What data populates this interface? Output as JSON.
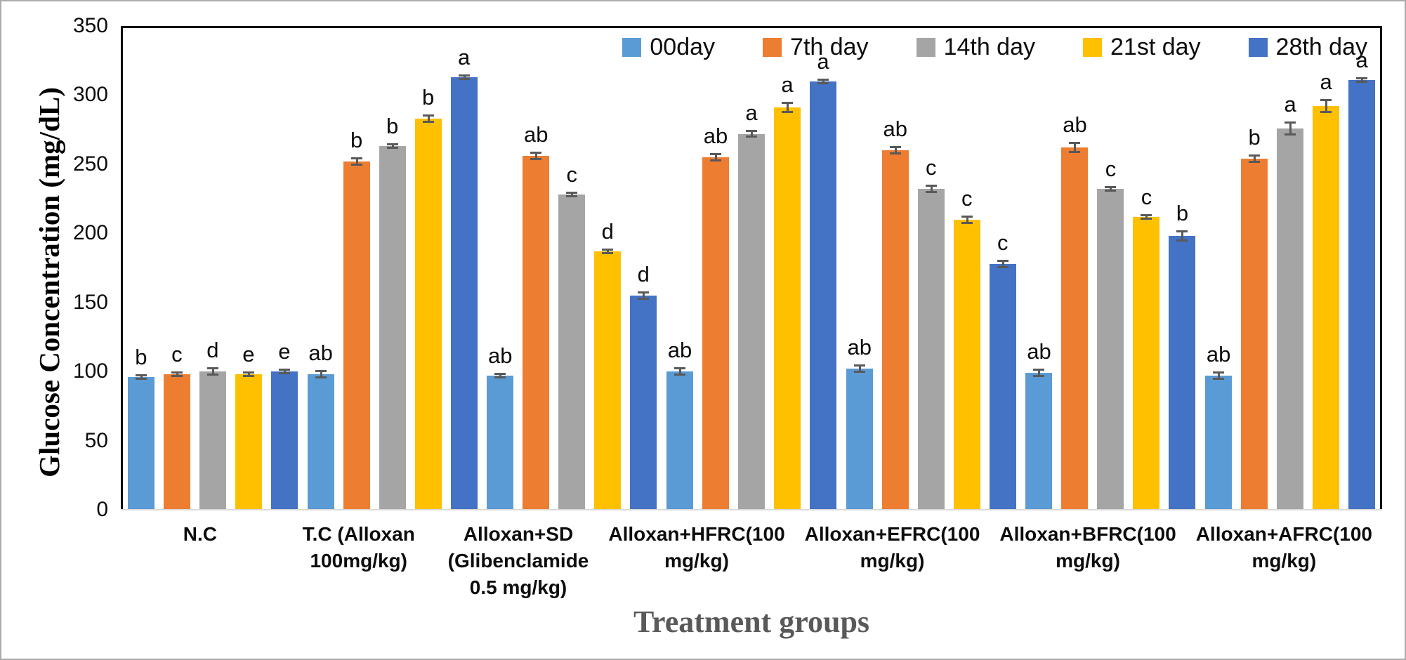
{
  "chart_data": {
    "type": "bar",
    "title": "",
    "xlabel": "Treatment groups",
    "ylabel": "Glucose Concentration (mg/dL)",
    "ylim": [
      0,
      350
    ],
    "yticks": [
      0,
      50,
      100,
      150,
      200,
      250,
      300,
      350
    ],
    "grid": false,
    "legend_position": "top-right-inside",
    "error_bar_color": "#595959",
    "categories": [
      "N.C",
      "T.C (Alloxan 100mg/kg)",
      "Alloxan+SD (Glibenclamide 0.5 mg/kg)",
      "Alloxan+HFRC(100 mg/kg)",
      "Alloxan+EFRC(100 mg/kg)",
      "Alloxan+BFRC(100 mg/kg)",
      "Alloxan+AFRC(100 mg/kg)"
    ],
    "series": [
      {
        "name": "00day",
        "color": "#5B9BD5",
        "values": [
          96,
          98,
          97,
          100,
          102,
          99,
          97
        ],
        "errors": [
          2,
          3,
          2,
          3,
          3,
          3,
          3
        ],
        "letters": [
          "b",
          "ab",
          "ab",
          "ab",
          "ab",
          "ab",
          "ab"
        ]
      },
      {
        "name": "7th day",
        "color": "#ED7D31",
        "values": [
          98,
          252,
          256,
          255,
          260,
          262,
          254
        ],
        "errors": [
          2,
          3,
          3,
          3,
          3,
          4,
          3
        ],
        "letters": [
          "c",
          "b",
          "ab",
          "ab",
          "ab",
          "ab",
          "b"
        ]
      },
      {
        "name": "14th day",
        "color": "#A5A5A5",
        "values": [
          100,
          263,
          228,
          272,
          232,
          232,
          276
        ],
        "errors": [
          3,
          2,
          2,
          3,
          3,
          2,
          5
        ],
        "letters": [
          "d",
          "b",
          "c",
          "a",
          "c",
          "c",
          "a"
        ]
      },
      {
        "name": "21st day",
        "color": "#FFC000",
        "values": [
          98,
          283,
          187,
          291,
          210,
          212,
          292
        ],
        "errors": [
          2,
          3,
          2,
          4,
          3,
          2,
          5
        ],
        "letters": [
          "e",
          "b",
          "d",
          "a",
          "c",
          "c",
          "a"
        ]
      },
      {
        "name": "28th day",
        "color": "#4472C4",
        "values": [
          100,
          313,
          155,
          310,
          178,
          198,
          311
        ],
        "errors": [
          2,
          2,
          3,
          2,
          3,
          4,
          2
        ],
        "letters": [
          "e",
          "a",
          "d",
          "a",
          "c",
          "b",
          "a"
        ]
      }
    ]
  }
}
